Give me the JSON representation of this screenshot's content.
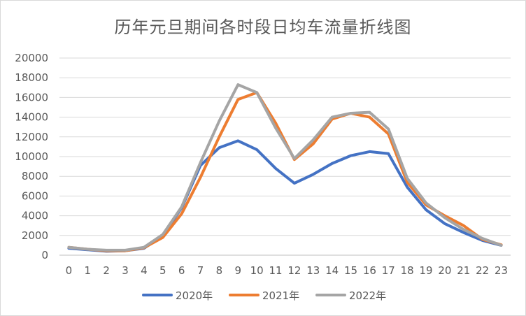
{
  "chart_data": {
    "type": "line",
    "title": "历年元旦期间各时段日均车流量折线图",
    "xlabel": "",
    "ylabel": "",
    "categories": [
      "0",
      "1",
      "2",
      "3",
      "4",
      "5",
      "6",
      "7",
      "8",
      "9",
      "10",
      "11",
      "12",
      "13",
      "14",
      "15",
      "16",
      "17",
      "18",
      "19",
      "20",
      "21",
      "22",
      "23"
    ],
    "ylim": [
      0,
      20000
    ],
    "yticks": [
      0,
      2000,
      4000,
      6000,
      8000,
      10000,
      12000,
      14000,
      16000,
      18000,
      20000
    ],
    "grid": true,
    "legend_position": "bottom",
    "series": [
      {
        "name": "2020年",
        "color": "#4472C4",
        "values": [
          700,
          550,
          400,
          450,
          700,
          2000,
          4800,
          9100,
          10900,
          11600,
          10700,
          8800,
          7300,
          8200,
          9300,
          10100,
          10500,
          10300,
          6900,
          4600,
          3200,
          2300,
          1500,
          1000
        ]
      },
      {
        "name": "2021年",
        "color": "#ED7D31",
        "values": [
          800,
          600,
          450,
          450,
          750,
          1800,
          4200,
          7900,
          12000,
          15800,
          16500,
          13400,
          9700,
          11300,
          13800,
          14400,
          14000,
          12300,
          7400,
          5100,
          4000,
          3000,
          1600,
          1050
        ]
      },
      {
        "name": "2022年",
        "color": "#A5A5A5",
        "values": [
          800,
          600,
          500,
          500,
          800,
          2100,
          4900,
          9400,
          13600,
          17300,
          16500,
          12900,
          9800,
          11700,
          14000,
          14400,
          14500,
          12800,
          7800,
          5300,
          3800,
          2600,
          1700,
          1000
        ]
      }
    ]
  }
}
